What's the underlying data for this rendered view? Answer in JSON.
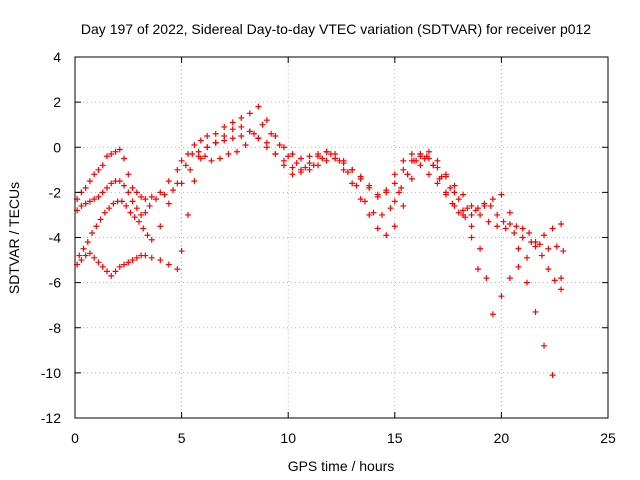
{
  "chart_data": {
    "type": "scatter",
    "title": "Day 197 of 2022, Sidereal Day-to-day VTEC variation (SDTVAR) for receiver p012",
    "xlabel": "GPS time / hours",
    "ylabel": "SDTVAR / TECUs",
    "xlim": [
      0,
      25
    ],
    "ylim": [
      -12,
      4
    ],
    "x_ticks": [
      0,
      5,
      10,
      15,
      20,
      25
    ],
    "y_ticks": [
      -12,
      -10,
      -8,
      -6,
      -4,
      -2,
      0,
      2,
      4
    ],
    "grid": true,
    "marker": "+",
    "color": "#ff0000",
    "series": [
      {
        "x": [
          0.1,
          0.3,
          0.5,
          0.7,
          0.9,
          1.1,
          1.3,
          1.5,
          1.7,
          1.9,
          2.1,
          2.3,
          2.5,
          2.7,
          2.9,
          3.1,
          3.3,
          3.6,
          4.0,
          4.4,
          4.8,
          5.0,
          5.3,
          5.6,
          5.9,
          6.2,
          6.6,
          7.0,
          7.4,
          7.8,
          8.2,
          8.6,
          9.0,
          9.4,
          9.8,
          10.2,
          10.6,
          11.0,
          11.4,
          11.8,
          12.2,
          12.6,
          13.0,
          13.4,
          13.8,
          14.2,
          14.6,
          15.0,
          15.4,
          15.8,
          16.2,
          16.6,
          17.0,
          17.4,
          17.8,
          18.2,
          18.6,
          19.0,
          19.4,
          19.8,
          20.2,
          20.6,
          21.0,
          21.4,
          21.8,
          22.2,
          22.6,
          22.9
        ],
        "y": [
          -2.3,
          -2.0,
          -1.8,
          -1.5,
          -1.2,
          -1.0,
          -0.8,
          -0.4,
          -0.3,
          -0.2,
          -0.1,
          -0.5,
          -1.2,
          -1.8,
          -2.0,
          -2.2,
          -2.3,
          -2.2,
          -2.0,
          -1.5,
          -1.0,
          -0.6,
          -0.3,
          0.1,
          0.3,
          0.5,
          0.6,
          0.9,
          1.1,
          1.3,
          1.5,
          1.8,
          1.2,
          0.5,
          0.0,
          -0.3,
          -0.5,
          -0.4,
          -0.3,
          -0.2,
          -0.3,
          -0.6,
          -1.0,
          -1.4,
          -1.8,
          -2.2,
          -1.9,
          -1.2,
          -0.6,
          -0.3,
          -0.3,
          -0.5,
          -0.9,
          -1.3,
          -1.7,
          -2.1,
          -2.6,
          -3.0,
          -3.3,
          -3.5,
          -3.6,
          -3.8,
          -4.0,
          -4.2,
          -4.3,
          -4.5,
          -4.4,
          -4.6
        ]
      },
      {
        "x": [
          0.1,
          0.3,
          0.5,
          0.7,
          0.9,
          1.1,
          1.3,
          1.5,
          1.7,
          1.9,
          2.1,
          2.3,
          2.5,
          2.7,
          2.9,
          3.1,
          3.3,
          3.6,
          4.0,
          4.4,
          4.8,
          5.0,
          5.3,
          5.6,
          5.9,
          6.2,
          6.6,
          7.0,
          7.4,
          7.8,
          8.2,
          8.6,
          9.0,
          9.4,
          9.8,
          10.2,
          10.6,
          11.0,
          11.4,
          11.8,
          12.2,
          12.6,
          13.0,
          13.4,
          13.8,
          14.2,
          14.6,
          15.0,
          15.4,
          15.8,
          16.2,
          16.6,
          17.0,
          17.4,
          17.8,
          18.2,
          18.6,
          18.9
        ],
        "y": [
          -5.2,
          -5.0,
          -4.8,
          -4.7,
          -4.9,
          -5.1,
          -5.3,
          -5.5,
          -5.7,
          -5.5,
          -5.3,
          -5.2,
          -5.1,
          -5.0,
          -4.9,
          -4.8,
          -4.8,
          -4.9,
          -5.0,
          -5.2,
          -5.4,
          -4.6,
          -3.0,
          -1.5,
          -0.5,
          0.0,
          0.2,
          0.5,
          0.8,
          0.9,
          0.7,
          0.4,
          0.2,
          -0.3,
          -0.8,
          -1.2,
          -1.0,
          -0.7,
          -0.4,
          -0.2,
          -0.5,
          -1.0,
          -1.6,
          -2.3,
          -3.0,
          -3.6,
          -3.9,
          -3.5,
          -2.6,
          -1.4,
          -0.4,
          -0.2,
          -0.6,
          -1.2,
          -2.0,
          -2.8,
          -4.0,
          -5.4
        ]
      },
      {
        "x": [
          0.2,
          0.4,
          0.6,
          0.8,
          1.0,
          1.2,
          1.4,
          1.6,
          1.8,
          2.0,
          2.2,
          2.4,
          2.6,
          2.8,
          3.0,
          3.2,
          3.4,
          3.6,
          4.0,
          4.4,
          4.8,
          5.2,
          5.5,
          5.8,
          6.1,
          6.4,
          6.8,
          7.2,
          7.6,
          8.0,
          8.4,
          8.8,
          9.2,
          9.6,
          10.0,
          10.4,
          10.8,
          11.2,
          11.6,
          12.0,
          12.4,
          12.8,
          13.2,
          13.6,
          14.0,
          14.4,
          14.8,
          15.2,
          15.6,
          16.0,
          16.4,
          16.8,
          17.2,
          17.6,
          18.0,
          18.4,
          18.8,
          19.2,
          19.6,
          20.0,
          20.4,
          20.8,
          21.2,
          21.6,
          22.0,
          22.4,
          22.8
        ],
        "y": [
          -4.8,
          -4.5,
          -4.2,
          -3.8,
          -3.5,
          -3.2,
          -2.9,
          -2.7,
          -2.5,
          -2.4,
          -2.4,
          -2.6,
          -2.9,
          -3.1,
          -3.3,
          -3.6,
          -3.9,
          -4.1,
          -3.5,
          -2.5,
          -1.6,
          -0.8,
          -0.3,
          -0.2,
          -0.4,
          -0.6,
          -0.5,
          -0.3,
          -0.2,
          0.1,
          0.6,
          1.0,
          0.6,
          0.1,
          -0.4,
          -0.7,
          -0.9,
          -0.8,
          -0.5,
          -0.3,
          -0.6,
          -1.1,
          -1.7,
          -2.4,
          -2.9,
          -3.0,
          -2.7,
          -2.0,
          -1.2,
          -0.6,
          -0.5,
          -0.8,
          -1.3,
          -1.8,
          -2.3,
          -2.7,
          -2.8,
          -2.6,
          -2.3,
          -2.1,
          -2.9,
          -4.5,
          -6.0,
          -7.3,
          -8.8,
          -10.1,
          -5.8
        ]
      },
      {
        "x": [
          0.1,
          0.3,
          0.5,
          0.7,
          0.9,
          1.1,
          1.3,
          1.5,
          1.7,
          1.9,
          2.1,
          2.3,
          2.5,
          2.7,
          2.9,
          3.1,
          3.3,
          3.5,
          3.8,
          4.2,
          4.6,
          5.0,
          5.4,
          5.8,
          6.2,
          6.6,
          7.0,
          7.4,
          7.8,
          8.2,
          8.6,
          9.0,
          9.4,
          9.8,
          10.2,
          10.6,
          11.0,
          11.4,
          11.8,
          12.2,
          12.6,
          13.0,
          13.4,
          13.8,
          14.2,
          14.6,
          15.0,
          15.4,
          15.8,
          16.2,
          16.6,
          17.0,
          17.4,
          17.8,
          18.2,
          18.6,
          19.0,
          19.3,
          19.6,
          20.0,
          20.4,
          20.8,
          21.2,
          21.6,
          22.0,
          22.4,
          22.8
        ],
        "y": [
          -2.8,
          -2.6,
          -2.5,
          -2.4,
          -2.3,
          -2.2,
          -2.0,
          -1.8,
          -1.6,
          -1.5,
          -1.5,
          -1.7,
          -2.0,
          -2.4,
          -2.7,
          -3.0,
          -2.9,
          -2.6,
          -2.3,
          -2.1,
          -1.9,
          -1.6,
          -1.0,
          -0.4,
          0.0,
          0.2,
          0.3,
          0.4,
          0.5,
          0.7,
          0.4,
          0.0,
          -0.3,
          -0.6,
          -0.9,
          -1.1,
          -1.0,
          -0.8,
          -0.6,
          -0.5,
          -0.7,
          -1.0,
          -1.3,
          -1.7,
          -2.1,
          -2.0,
          -1.6,
          -1.0,
          -0.6,
          -0.8,
          -1.2,
          -1.6,
          -2.1,
          -2.6,
          -3.0,
          -3.5,
          -4.5,
          -5.8,
          -7.4,
          -6.6,
          -5.8,
          -5.3,
          -4.9,
          -4.4,
          -3.9,
          -3.6,
          -3.4
        ]
      },
      {
        "x": [
          15.0,
          15.3,
          15.6,
          15.9,
          16.2,
          16.5,
          16.8,
          17.1,
          17.4,
          17.7,
          18.0,
          18.3,
          18.6,
          18.9,
          19.2,
          19.5,
          19.8,
          20.1,
          20.4,
          20.7,
          21.0,
          21.3,
          21.6,
          21.9,
          22.2,
          22.5,
          22.8
        ],
        "y": [
          -2.4,
          -1.8,
          -1.2,
          -0.6,
          -0.3,
          -0.4,
          -0.8,
          -1.4,
          -2.0,
          -2.5,
          -2.9,
          -3.1,
          -3.0,
          -2.7,
          -2.5,
          -2.6,
          -3.0,
          -3.3,
          -3.4,
          -3.5,
          -3.6,
          -3.8,
          -4.2,
          -4.8,
          -5.4,
          -5.9,
          -6.3
        ]
      }
    ]
  }
}
